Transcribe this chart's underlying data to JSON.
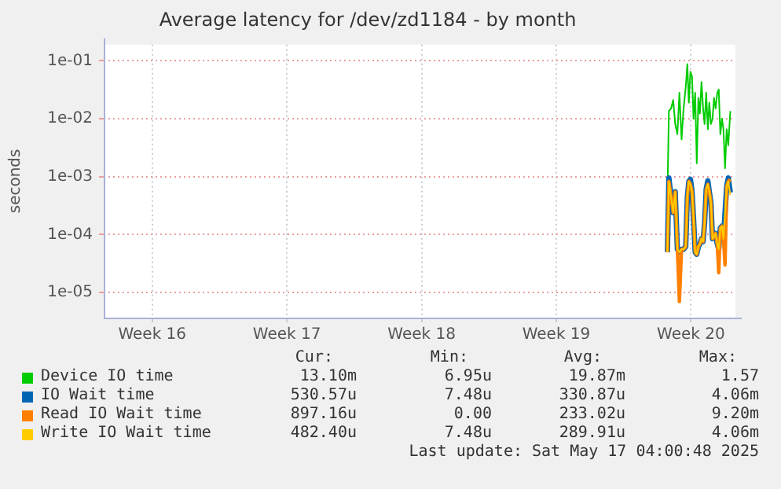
{
  "chart_data": {
    "type": "line",
    "title": "Average latency for /dev/zd1184 - by month",
    "ylabel": "seconds",
    "log": "y",
    "grid": true,
    "legend": "bottom",
    "xlim": [
      "2025-04-14T11:30",
      "2025-05-17T07:26"
    ],
    "xticks": [
      {
        "value": "2025-04-17T00:00",
        "label": "Week 16"
      },
      {
        "value": "2025-04-24T00:00",
        "label": "Week 17"
      },
      {
        "value": "2025-05-01T00:00",
        "label": "Week 18"
      },
      {
        "value": "2025-05-08T00:00",
        "label": "Week 19"
      },
      {
        "value": "2025-05-15T00:00",
        "label": "Week 20"
      }
    ],
    "ylim": [
      3.7e-06,
      0.19
    ],
    "yticks": [
      {
        "value": 1e-05,
        "label": "1e-05"
      },
      {
        "value": 0.0001,
        "label": "1e-04"
      },
      {
        "value": 0.001,
        "label": "1e-03"
      },
      {
        "value": 0.01,
        "label": "1e-02"
      },
      {
        "value": 0.1,
        "label": "1e-01"
      }
    ],
    "x": [
      "2025-05-13T18:36",
      "2025-05-13T20:27",
      "2025-05-13T23:08",
      "2025-05-14T01:49",
      "2025-05-14T04:20",
      "2025-05-14T07:02",
      "2025-05-14T09:33",
      "2025-05-14T12:14",
      "2025-05-14T14:46",
      "2025-05-14T17:27",
      "2025-05-14T19:28",
      "2025-05-14T21:19",
      "2025-05-14T23:20",
      "2025-05-15T01:20",
      "2025-05-15T03:11",
      "2025-05-15T05:13",
      "2025-05-15T07:13",
      "2025-05-15T09:14",
      "2025-05-15T11:05",
      "2025-05-15T13:06",
      "2025-05-15T15:07",
      "2025-05-15T16:58",
      "2025-05-15T18:59",
      "2025-05-15T21:00",
      "2025-05-15T22:51",
      "2025-05-16T00:52",
      "2025-05-16T02:53",
      "2025-05-16T04:44",
      "2025-05-16T06:44",
      "2025-05-16T08:46",
      "2025-05-16T10:37",
      "2025-05-16T12:37",
      "2025-05-16T14:38",
      "2025-05-16T16:29",
      "2025-05-16T18:30",
      "2025-05-16T20:31",
      "2025-05-16T22:32",
      "2025-05-17T01:04"
    ],
    "series": [
      {
        "name": "Device IO time",
        "color": "#00cc00",
        "values": [
          0.00045,
          0.0136,
          0.015,
          0.021,
          0.0081,
          0.0054,
          0.028,
          0.0044,
          0.015,
          0.035,
          0.088,
          0.019,
          0.065,
          0.053,
          0.01,
          0.028,
          0.0017,
          0.023,
          0.0123,
          0.043,
          0.015,
          0.0081,
          0.028,
          0.0066,
          0.019,
          0.0081,
          0.01,
          0.023,
          0.015,
          0.028,
          0.032,
          0.0054,
          0.01,
          0.0066,
          0.0014,
          0.0066,
          0.0035,
          0.0136
        ]
      },
      {
        "name": "IO Wait time",
        "color": "#0066b3",
        "values": [
          5e-05,
          0.00095,
          0.00045,
          0.00024,
          0.00055,
          5.6e-05,
          5e-05,
          5.6e-05,
          5.6e-05,
          6.2e-05,
          0.00045,
          0.00083,
          0.0009,
          0.00055,
          0.00019,
          5e-05,
          4.6e-05,
          6.2e-05,
          6.9e-05,
          8.5e-05,
          7.6e-05,
          0.00016,
          0.00061,
          0.00085,
          0.00055,
          0.00036,
          8.5e-05,
          9.3e-05,
          0.000105,
          6.9e-05,
          5.6e-05,
          0.00013,
          0.00014,
          8.5e-05,
          0.00024,
          0.00068,
          0.00095,
          0.00053
        ]
      },
      {
        "name": "Read IO Wait time",
        "color": "#ff8000",
        "values": [
          5e-05,
          0.00083,
          0.00045,
          0.00024,
          0.00055,
          5.6e-05,
          7e-06,
          5.6e-05,
          5.6e-05,
          6.2e-05,
          0.00045,
          0.00083,
          0.00074,
          0.00055,
          0.00019,
          5e-05,
          4.6e-05,
          6.2e-05,
          6.9e-05,
          8.5e-05,
          7.6e-05,
          0.00016,
          0.00061,
          0.00074,
          0.00055,
          0.00036,
          8.5e-05,
          9.3e-05,
          0.000105,
          6.9e-05,
          2.2e-05,
          0.00013,
          0.00014,
          8.5e-05,
          3e-05,
          0.00068,
          0.00083,
          0.0009
        ]
      },
      {
        "name": "Write IO Wait time",
        "color": "#ffcc00",
        "values": [
          5e-05,
          0.00083,
          0.00045,
          0.00024,
          0.00055,
          5.6e-05,
          5e-05,
          5.6e-05,
          5.6e-05,
          6.2e-05,
          0.00045,
          0.00083,
          0.00074,
          0.00055,
          0.00019,
          5e-05,
          4.6e-05,
          6.2e-05,
          6.9e-05,
          8.5e-05,
          7.6e-05,
          0.00016,
          0.00061,
          0.00074,
          0.00055,
          0.00036,
          8.5e-05,
          9.3e-05,
          0.000105,
          6.9e-05,
          5.6e-05,
          0.00013,
          0.00014,
          8.5e-05,
          0.00024,
          0.00068,
          0.00083,
          0.00048
        ]
      }
    ],
    "annotations": [
      "Cur:",
      "Min:",
      "Avg:",
      "Max:",
      "13.10m",
      "6.95u",
      "19.87m",
      "1.57",
      "530.57u",
      "7.48u",
      "330.87u",
      "4.06m",
      "897.16u",
      "0.00",
      "233.02u",
      "9.20m",
      "482.40u",
      "7.48u",
      "289.91u",
      "4.06m",
      "Last update: Sat May 17 04:00:48 2025"
    ]
  }
}
